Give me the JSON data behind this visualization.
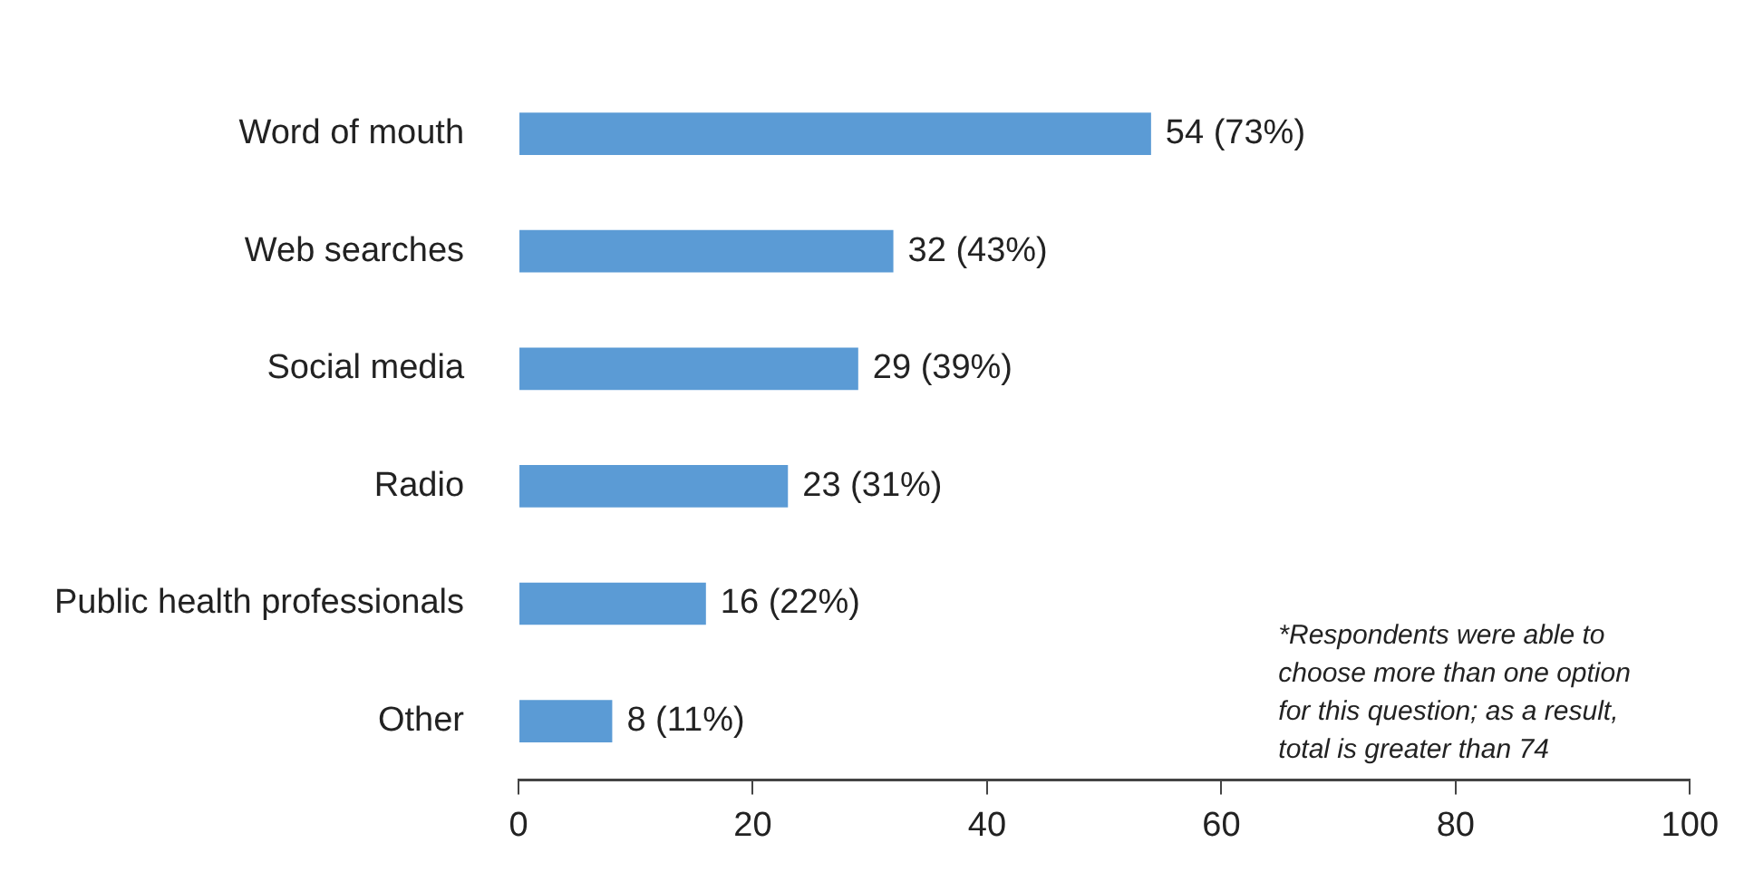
{
  "chart_data": {
    "type": "bar",
    "orientation": "horizontal",
    "categories": [
      "Word of mouth",
      "Web searches",
      "Social media",
      "Radio",
      "Public health professionals",
      "Other"
    ],
    "values": [
      54,
      32,
      29,
      23,
      16,
      8
    ],
    "value_labels": [
      "54 (73%)",
      "32 (43%)",
      "29 (39%)",
      "23 (31%)",
      "16 (22%)",
      "8 (11%)"
    ],
    "color": "#5b9bd5",
    "xlim": [
      0,
      100
    ],
    "xticks": [
      0,
      20,
      40,
      60,
      80,
      100
    ],
    "grid": false,
    "legend": false,
    "annotations": [
      "*Respondents were able to choose more than one option for this question; as a result, total is greater than 74"
    ]
  }
}
